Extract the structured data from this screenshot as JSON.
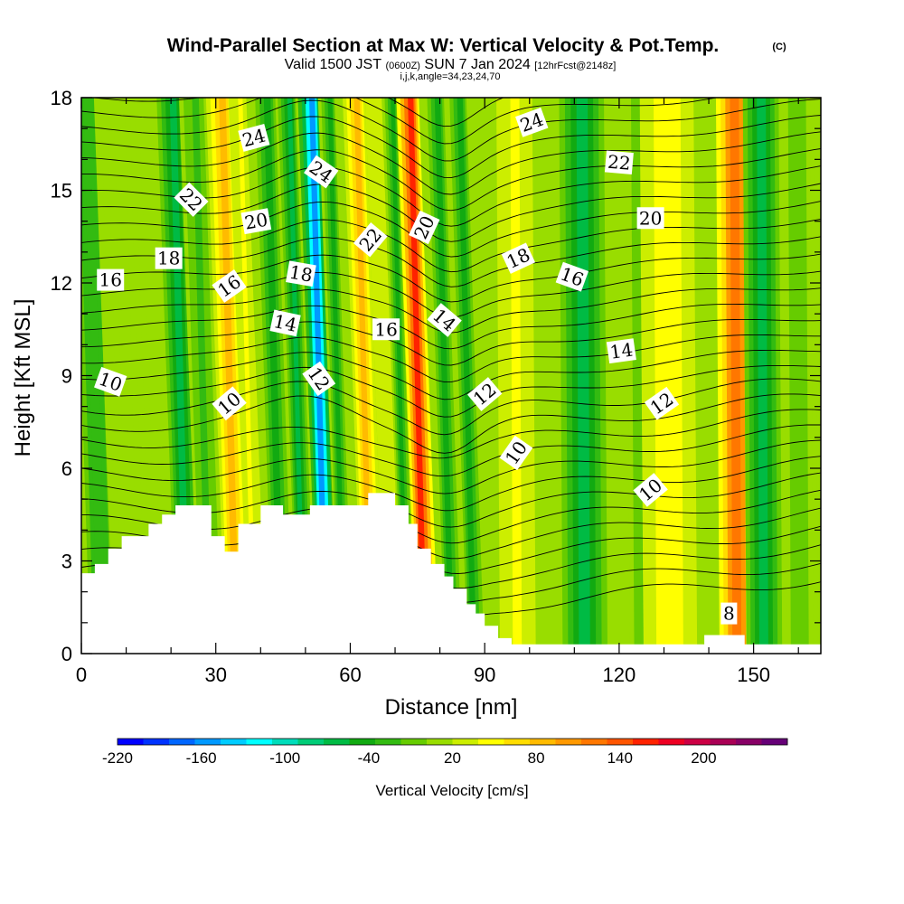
{
  "title": {
    "main": "Wind-Parallel Section at Max W: Vertical Velocity & Pot.Temp.",
    "copyright": "(C)",
    "valid_prefix": "Valid 1500 JST",
    "valid_utc": "(0600Z)",
    "valid_date": "SUN 7 Jan 2024",
    "forecast": "[12hrFcst@2148z]",
    "indices": "i,j,k,angle=34,23,24,70"
  },
  "chart_data": {
    "type": "heatmap",
    "xlabel": "Distance [nm]",
    "ylabel": "Height [Kft MSL]",
    "xlim": [
      0,
      165
    ],
    "ylim": [
      0,
      18
    ],
    "x_ticks": [
      0,
      30,
      60,
      90,
      120,
      150
    ],
    "y_ticks": [
      0,
      3,
      6,
      9,
      12,
      15,
      18
    ],
    "colorbar": {
      "label": "Vertical Velocity [cm/s]",
      "range": [
        -220,
        260
      ],
      "tick_values": [
        -220,
        -160,
        -100,
        -40,
        20,
        80,
        140,
        200
      ],
      "tick_labels": [
        "-220",
        "-160",
        "-100",
        "-40",
        "20",
        "80",
        "140",
        "200"
      ],
      "colors": [
        "#0000ff",
        "#0033ff",
        "#0066ff",
        "#0099ff",
        "#00ccff",
        "#00ffff",
        "#00ddbb",
        "#00cc77",
        "#00bb44",
        "#11aa11",
        "#33bb11",
        "#66cc00",
        "#99dd00",
        "#ccee00",
        "#ffff00",
        "#ffdd00",
        "#ffbb00",
        "#ff9900",
        "#ff7700",
        "#ff5500",
        "#ff2200",
        "#ee0022",
        "#cc0044",
        "#aa0055",
        "#880066",
        "#660077"
      ]
    },
    "vertical_velocity_bands": [
      {
        "x": 3,
        "w": 4,
        "v": -30
      },
      {
        "x": 10,
        "w": 5,
        "v": 10
      },
      {
        "x": 22,
        "w": 3,
        "v": -70
      },
      {
        "x": 27,
        "w": 3,
        "v": -20
      },
      {
        "x": 33,
        "w": 3,
        "v": 90
      },
      {
        "x": 37,
        "w": 2,
        "v": 40
      },
      {
        "x": 43,
        "w": 3,
        "v": -40
      },
      {
        "x": 48,
        "w": 2,
        "v": -70
      },
      {
        "x": 53,
        "w": 2.5,
        "v": -160
      },
      {
        "x": 57,
        "w": 2,
        "v": -40
      },
      {
        "x": 63,
        "w": 2.5,
        "v": 90
      },
      {
        "x": 67.5,
        "w": 2,
        "v": 30
      },
      {
        "x": 71,
        "w": 1.8,
        "v": -50
      },
      {
        "x": 75,
        "w": 2.5,
        "v": 160
      },
      {
        "x": 81,
        "w": 2.5,
        "v": -50
      },
      {
        "x": 86,
        "w": 2.5,
        "v": -40
      },
      {
        "x": 97,
        "w": 4,
        "v": 40
      },
      {
        "x": 112,
        "w": 5,
        "v": -60
      },
      {
        "x": 126,
        "w": 4,
        "v": -20
      },
      {
        "x": 131,
        "w": 6,
        "v": 50
      },
      {
        "x": 146,
        "w": 4,
        "v": 120
      },
      {
        "x": 152,
        "w": 4,
        "v": -60
      },
      {
        "x": 160,
        "w": 4,
        "v": -10
      }
    ],
    "terrain_height": [
      [
        0,
        2.6
      ],
      [
        3,
        2.9
      ],
      [
        6,
        3.4
      ],
      [
        9,
        3.8
      ],
      [
        12,
        3.8
      ],
      [
        15,
        4.2
      ],
      [
        18,
        4.5
      ],
      [
        21,
        4.8
      ],
      [
        26,
        4.8
      ],
      [
        29,
        3.8
      ],
      [
        32,
        3.3
      ],
      [
        35,
        4.2
      ],
      [
        37,
        4.2
      ],
      [
        40,
        4.8
      ],
      [
        45,
        4.5
      ],
      [
        51,
        4.8
      ],
      [
        62,
        4.8
      ],
      [
        64,
        5.2
      ],
      [
        67,
        5.2
      ],
      [
        70,
        4.8
      ],
      [
        73,
        4.2
      ],
      [
        75,
        3.4
      ],
      [
        78,
        2.9
      ],
      [
        81,
        2.5
      ],
      [
        83,
        2.1
      ],
      [
        86,
        1.6
      ],
      [
        88,
        1.3
      ],
      [
        90,
        0.9
      ],
      [
        93,
        0.5
      ],
      [
        96,
        0.3
      ],
      [
        138,
        0.3
      ],
      [
        139,
        0.6
      ],
      [
        147,
        0.6
      ],
      [
        148,
        0.3
      ],
      [
        165,
        0.3
      ]
    ],
    "theta_contour_levels": [
      8,
      10,
      12,
      14,
      16,
      18,
      20,
      22,
      24
    ],
    "contour_labels": [
      {
        "text": "24",
        "x": 38.5,
        "y": 16.7,
        "angle": -15
      },
      {
        "text": "24",
        "x": 53.5,
        "y": 15.6,
        "angle": 35
      },
      {
        "text": "22",
        "x": 24.5,
        "y": 14.7,
        "angle": 45
      },
      {
        "text": "20",
        "x": 39,
        "y": 14.0,
        "angle": -10
      },
      {
        "text": "18",
        "x": 19.5,
        "y": 12.8,
        "angle": 0
      },
      {
        "text": "16",
        "x": 6.5,
        "y": 12.1,
        "angle": 0
      },
      {
        "text": "16",
        "x": 33,
        "y": 11.9,
        "angle": -35
      },
      {
        "text": "18",
        "x": 49,
        "y": 12.3,
        "angle": 10
      },
      {
        "text": "14",
        "x": 45.5,
        "y": 10.7,
        "angle": 12
      },
      {
        "text": "10",
        "x": 6.5,
        "y": 8.8,
        "angle": 20
      },
      {
        "text": "10",
        "x": 33,
        "y": 8.1,
        "angle": -40
      },
      {
        "text": "12",
        "x": 53,
        "y": 8.9,
        "angle": 55
      },
      {
        "text": "22",
        "x": 64.5,
        "y": 13.4,
        "angle": -50
      },
      {
        "text": "20",
        "x": 76.5,
        "y": 13.8,
        "angle": -65
      },
      {
        "text": "16",
        "x": 68,
        "y": 10.5,
        "angle": 0
      },
      {
        "text": "14",
        "x": 81,
        "y": 10.8,
        "angle": 40
      },
      {
        "text": "24",
        "x": 100.5,
        "y": 17.2,
        "angle": -20
      },
      {
        "text": "22",
        "x": 120,
        "y": 15.9,
        "angle": 5
      },
      {
        "text": "20",
        "x": 127,
        "y": 14.1,
        "angle": 0
      },
      {
        "text": "18",
        "x": 97.5,
        "y": 12.8,
        "angle": -25
      },
      {
        "text": "16",
        "x": 109.5,
        "y": 12.2,
        "angle": 20
      },
      {
        "text": "14",
        "x": 120.5,
        "y": 9.8,
        "angle": -8
      },
      {
        "text": "12",
        "x": 90,
        "y": 8.4,
        "angle": -40
      },
      {
        "text": "12",
        "x": 129.5,
        "y": 8.1,
        "angle": -35
      },
      {
        "text": "10",
        "x": 97,
        "y": 6.5,
        "angle": -55
      },
      {
        "text": "10",
        "x": 127,
        "y": 5.3,
        "angle": -40
      },
      {
        "text": "8",
        "x": 144.5,
        "y": 1.3,
        "angle": 0
      }
    ]
  }
}
